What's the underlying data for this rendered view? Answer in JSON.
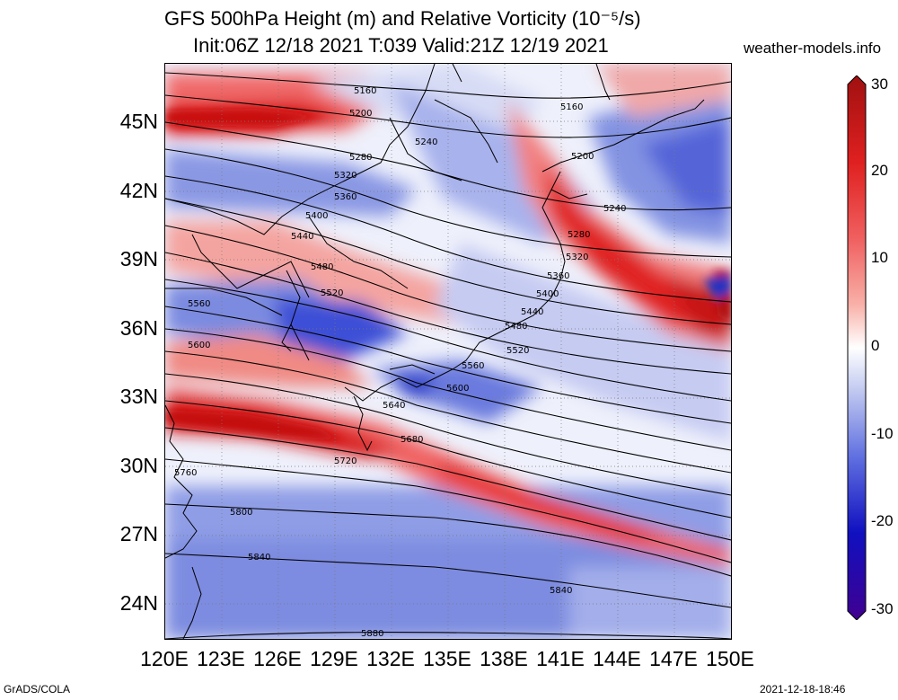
{
  "title": {
    "line1": "GFS 500hPa Height (m) and Relative Vorticity (10⁻⁵/s)",
    "line2": "Init:06Z 12/18 2021 T:039 Valid:21Z 12/19 2021"
  },
  "site": "weather-models.info",
  "latitude_labels": [
    "45N",
    "42N",
    "39N",
    "36N",
    "33N",
    "30N",
    "27N",
    "24N"
  ],
  "longitude_labels": [
    "120E",
    "123E",
    "126E",
    "129E",
    "132E",
    "135E",
    "138E",
    "141E",
    "144E",
    "147E",
    "150E"
  ],
  "colorbar": {
    "ticks": [
      "30",
      "20",
      "10",
      "0",
      "-10",
      "-20",
      "-30"
    ],
    "colors_top_to_bottom": [
      "#a01010",
      "#e02020",
      "#f06060",
      "#f8b0a8",
      "#ffffff",
      "#c0c8f0",
      "#6070e0",
      "#1010c0",
      "#400090"
    ]
  },
  "contour_labels": [
    "5160",
    "5200",
    "5240",
    "5280",
    "5320",
    "5360",
    "5400",
    "5440",
    "5480",
    "5520",
    "5560",
    "5600",
    "5640",
    "5680",
    "5720",
    "5760",
    "5800",
    "5840",
    "5880",
    "5160",
    "5200",
    "5240",
    "5280",
    "5320",
    "5360",
    "5400",
    "5440",
    "5480",
    "5520",
    "5560",
    "5600",
    "5840"
  ],
  "footer": {
    "left": "GrADS/COLA",
    "right": "2021-12-18-18:46"
  }
}
